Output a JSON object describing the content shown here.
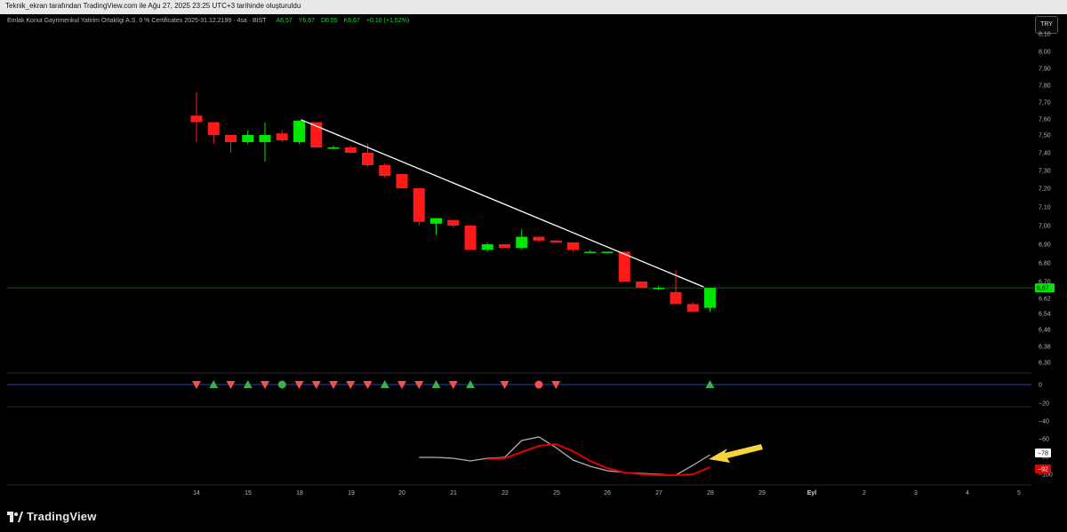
{
  "header": {
    "attribution": "Teknik_ekran tarafından TradingView.com ile Ağu 27, 2025 23:25 UTC+3 tarihinde oluşturuldu"
  },
  "legend": {
    "title": "Emlak Konut Gayrimenkul Yatirim Ortakligi A.S. 0 % Certificates 2025-31.12.2199 · 4sa · BIST",
    "open": "A6,57",
    "high": "Y6,67",
    "low": "D6,55",
    "close": "K6,67",
    "change": "+0,10 (+1,52%)"
  },
  "currency_button": "TRY",
  "brand": {
    "name": "TradingView"
  },
  "colors": {
    "up": "#00e600",
    "down": "#ff1a1a",
    "signal_up": "#3fae49",
    "signal_down": "#f45050",
    "trendline": "#ffffff",
    "arrow": "#f7d43a"
  },
  "chart_data": [
    {
      "type": "candlestick",
      "ylim": [
        6.22,
        8.12
      ],
      "y_ticks": [
        "8,10",
        "8,00",
        "7,90",
        "7,80",
        "7,70",
        "7,60",
        "7,50",
        "7,40",
        "7,30",
        "7,20",
        "7,10",
        "7,00",
        "6,90",
        "6,80",
        "6,70",
        "6,62",
        "6,54",
        "6,46",
        "6,38",
        "6,30"
      ],
      "x_ticks": [
        "14",
        "15",
        "18",
        "19",
        "20",
        "21",
        "22",
        "25",
        "26",
        "27",
        "28",
        "29",
        "Eyl",
        "2",
        "3",
        "4",
        "5"
      ],
      "last_price_label": "6,67",
      "last_price": 6.67,
      "candles": [
        {
          "o": 7.62,
          "h": 7.76,
          "l": 7.46,
          "c": 7.58
        },
        {
          "o": 7.58,
          "h": 7.58,
          "l": 7.45,
          "c": 7.5
        },
        {
          "o": 7.5,
          "h": 7.5,
          "l": 7.4,
          "c": 7.46
        },
        {
          "o": 7.46,
          "h": 7.53,
          "l": 7.45,
          "c": 7.5
        },
        {
          "o": 7.46,
          "h": 7.58,
          "l": 7.35,
          "c": 7.5
        },
        {
          "o": 7.51,
          "h": 7.53,
          "l": 7.46,
          "c": 7.47
        },
        {
          "o": 7.46,
          "h": 7.59,
          "l": 7.45,
          "c": 7.59
        },
        {
          "o": 7.58,
          "h": 7.58,
          "l": 7.43,
          "c": 7.43
        },
        {
          "o": 7.43,
          "h": 7.44,
          "l": 7.42,
          "c": 7.43
        },
        {
          "o": 7.43,
          "h": 7.44,
          "l": 7.4,
          "c": 7.4
        },
        {
          "o": 7.4,
          "h": 7.45,
          "l": 7.32,
          "c": 7.33
        },
        {
          "o": 7.33,
          "h": 7.34,
          "l": 7.26,
          "c": 7.27
        },
        {
          "o": 7.28,
          "h": 7.28,
          "l": 7.2,
          "c": 7.2
        },
        {
          "o": 7.2,
          "h": 7.2,
          "l": 7.0,
          "c": 7.02
        },
        {
          "o": 7.01,
          "h": 7.04,
          "l": 6.95,
          "c": 7.04
        },
        {
          "o": 7.03,
          "h": 7.03,
          "l": 6.99,
          "c": 7.0
        },
        {
          "o": 7.0,
          "h": 7.0,
          "l": 6.87,
          "c": 6.87
        },
        {
          "o": 6.87,
          "h": 6.91,
          "l": 6.86,
          "c": 6.9
        },
        {
          "o": 6.9,
          "h": 6.9,
          "l": 6.88,
          "c": 6.88
        },
        {
          "o": 6.88,
          "h": 6.98,
          "l": 6.87,
          "c": 6.94
        },
        {
          "o": 6.94,
          "h": 6.94,
          "l": 6.91,
          "c": 6.92
        },
        {
          "o": 6.92,
          "h": 6.92,
          "l": 6.91,
          "c": 6.91
        },
        {
          "o": 6.91,
          "h": 6.91,
          "l": 6.86,
          "c": 6.87
        },
        {
          "o": 6.86,
          "h": 6.87,
          "l": 6.86,
          "c": 6.86
        },
        {
          "o": 6.86,
          "h": 6.86,
          "l": 6.85,
          "c": 6.86
        },
        {
          "o": 6.86,
          "h": 6.86,
          "l": 6.7,
          "c": 6.7
        },
        {
          "o": 6.7,
          "h": 6.7,
          "l": 6.67,
          "c": 6.67
        },
        {
          "o": 6.67,
          "h": 6.68,
          "l": 6.66,
          "c": 6.67
        },
        {
          "o": 6.65,
          "h": 6.76,
          "l": 6.59,
          "c": 6.59
        },
        {
          "o": 6.59,
          "h": 6.6,
          "l": 6.55,
          "c": 6.55
        },
        {
          "o": 6.57,
          "h": 6.67,
          "l": 6.55,
          "c": 6.67
        }
      ],
      "trendline": [
        {
          "bar": 6,
          "price": 7.59
        },
        {
          "bar": 30,
          "price": 6.67
        }
      ]
    },
    {
      "type": "signals",
      "zero_label": "0",
      "markers": [
        "down",
        "up",
        "down",
        "up",
        "down",
        "circle-up",
        "down",
        "down",
        "down",
        "down",
        "down",
        "up",
        "down",
        "down",
        "up",
        "down",
        "up",
        "none",
        "down",
        "none",
        "circle-down",
        "down",
        "none",
        "none",
        "none",
        "none",
        "none",
        "none",
        "none",
        "none",
        "up"
      ]
    },
    {
      "type": "line",
      "ylim": [
        -110,
        -25
      ],
      "y_ticks": [
        "−20",
        "−40",
        "−60",
        "−80",
        "−100"
      ],
      "series": [
        {
          "color": "#b0b0b0",
          "label": "−78",
          "values": [
            null,
            null,
            null,
            null,
            null,
            null,
            null,
            null,
            null,
            null,
            null,
            null,
            null,
            -81,
            -81,
            -82,
            -85,
            -82,
            -81,
            -62,
            -58,
            -70,
            -84,
            -91,
            -96,
            -98,
            -99,
            -100,
            -101,
            -90,
            -78
          ]
        },
        {
          "color": "#e00000",
          "label": "−92",
          "values": [
            null,
            null,
            null,
            null,
            null,
            null,
            null,
            null,
            null,
            null,
            null,
            null,
            null,
            null,
            null,
            null,
            null,
            -83,
            -82,
            -75,
            -68,
            -66,
            -74,
            -85,
            -93,
            -98,
            -100,
            -101,
            -101,
            -100,
            -92
          ]
        }
      ]
    }
  ]
}
